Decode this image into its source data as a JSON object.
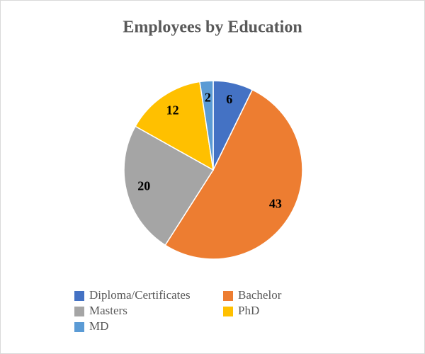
{
  "chart_data": {
    "type": "pie",
    "title": "Employees by Education",
    "categories": [
      "Diploma/Certificates",
      "Bachelor",
      "Masters",
      "PhD",
      "MD"
    ],
    "values": [
      6,
      43,
      20,
      12,
      2
    ],
    "colors": [
      "#4472c4",
      "#ed7d31",
      "#a5a5a5",
      "#ffc000",
      "#5b9bd5"
    ],
    "legend": "bottom"
  }
}
